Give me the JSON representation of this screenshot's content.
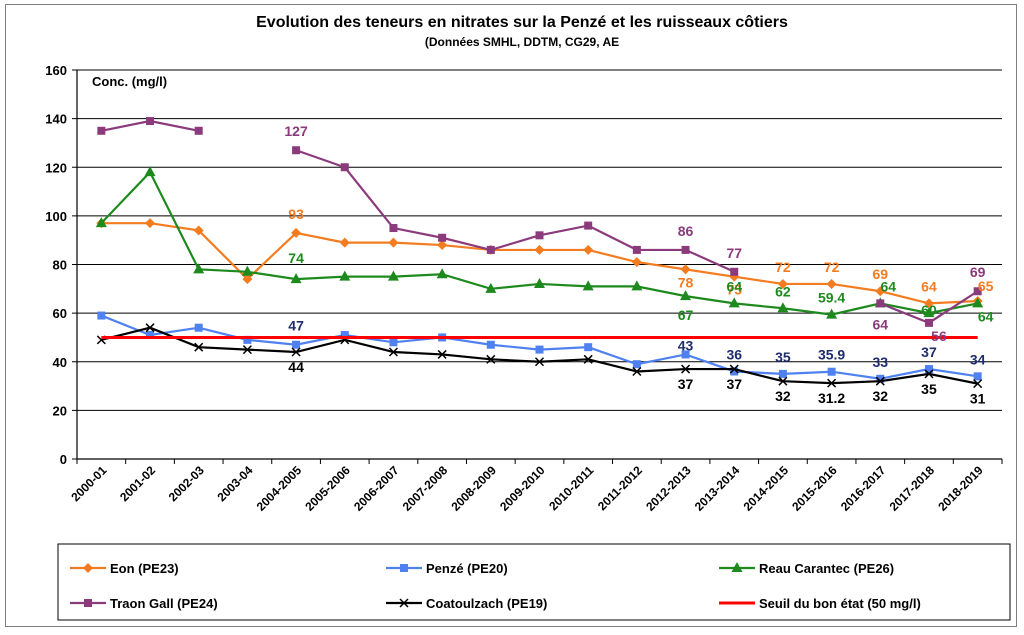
{
  "chart_data": {
    "type": "line",
    "title": "Evolution des teneurs en nitrates sur la Penzé et les ruisseaux côtiers",
    "subtitle": "(Données SMHL, DDTM, CG29, AE",
    "ylabel": "Conc. (mg/l)",
    "xlabel": "",
    "ylim": [
      0,
      160
    ],
    "yticks": [
      0,
      20,
      40,
      60,
      80,
      100,
      120,
      140,
      160
    ],
    "grid": true,
    "legend_position": "bottom",
    "categories": [
      "2000-01",
      "2001-02",
      "2002-03",
      "2003-04",
      "2004-2005",
      "2005-2006",
      "2006-2007",
      "2007-2008",
      "2008-2009",
      "2009-2010",
      "2010-2011",
      "2011-2012",
      "2012-2013",
      "2013-2014",
      "2014-2015",
      "2015-2016",
      "2016-2017",
      "2017-2018",
      "2018-2019"
    ],
    "series": [
      {
        "name": "Eon (PE23)",
        "color": "#f47c20",
        "marker": "diamond",
        "values": [
          97,
          97,
          94,
          74,
          93,
          89,
          89,
          88,
          86,
          86,
          86,
          81,
          78,
          75,
          72,
          72,
          69,
          64,
          65
        ]
      },
      {
        "name": "Penzé (PE20)",
        "color": "#4f81f0",
        "marker": "square",
        "values": [
          59,
          51,
          54,
          49,
          47,
          51,
          48,
          50,
          47,
          45,
          46,
          39,
          43,
          36,
          35,
          35.9,
          33,
          37,
          34
        ]
      },
      {
        "name": "Reau Carantec (PE26)",
        "color": "#1e8a1e",
        "marker": "triangle",
        "values": [
          97,
          118,
          78,
          77,
          74,
          75,
          75,
          76,
          70,
          72,
          71,
          71,
          67,
          64,
          62,
          59.4,
          64,
          60,
          64
        ]
      },
      {
        "name": "Traon Gall (PE24)",
        "color": "#8b3a7c",
        "marker": "square",
        "values": [
          135,
          139,
          135,
          null,
          127,
          120,
          95,
          91,
          86,
          92,
          96,
          86,
          86,
          77,
          null,
          null,
          64,
          56,
          69
        ]
      },
      {
        "name": "Coatoulzach (PE19)",
        "color": "#000000",
        "marker": "x",
        "values": [
          49,
          54,
          46,
          45,
          44,
          49,
          44,
          43,
          41,
          40,
          41,
          36,
          37,
          37,
          32,
          31.2,
          32,
          35,
          31
        ]
      },
      {
        "name": "Seuil du bon état (50 mg/l)",
        "color": "#ff0000",
        "marker": "none",
        "threshold": 50
      }
    ],
    "data_labels": [
      {
        "series": 0,
        "index": 4,
        "text": "93"
      },
      {
        "series": 0,
        "index": 12,
        "text": "78"
      },
      {
        "series": 0,
        "index": 13,
        "text": "75"
      },
      {
        "series": 0,
        "index": 14,
        "text": "72"
      },
      {
        "series": 0,
        "index": 15,
        "text": "72"
      },
      {
        "series": 0,
        "index": 16,
        "text": "69"
      },
      {
        "series": 0,
        "index": 17,
        "text": "64"
      },
      {
        "series": 0,
        "index": 18,
        "text": "65"
      },
      {
        "series": 1,
        "index": 4,
        "text": "47"
      },
      {
        "series": 1,
        "index": 12,
        "text": "43"
      },
      {
        "series": 1,
        "index": 13,
        "text": "36"
      },
      {
        "series": 1,
        "index": 14,
        "text": "35"
      },
      {
        "series": 1,
        "index": 15,
        "text": "35.9"
      },
      {
        "series": 1,
        "index": 16,
        "text": "33"
      },
      {
        "series": 1,
        "index": 17,
        "text": "37"
      },
      {
        "series": 1,
        "index": 18,
        "text": "34"
      },
      {
        "series": 2,
        "index": 4,
        "text": "74"
      },
      {
        "series": 2,
        "index": 12,
        "text": "67"
      },
      {
        "series": 2,
        "index": 13,
        "text": "64"
      },
      {
        "series": 2,
        "index": 14,
        "text": "62"
      },
      {
        "series": 2,
        "index": 15,
        "text": "59.4"
      },
      {
        "series": 2,
        "index": 16,
        "text": "64"
      },
      {
        "series": 2,
        "index": 17,
        "text": "60"
      },
      {
        "series": 2,
        "index": 18,
        "text": "64"
      },
      {
        "series": 3,
        "index": 4,
        "text": "127"
      },
      {
        "series": 3,
        "index": 12,
        "text": "86"
      },
      {
        "series": 3,
        "index": 13,
        "text": "77"
      },
      {
        "series": 3,
        "index": 16,
        "text": "64"
      },
      {
        "series": 3,
        "index": 17,
        "text": "56"
      },
      {
        "series": 3,
        "index": 18,
        "text": "69"
      },
      {
        "series": 4,
        "index": 4,
        "text": "44"
      },
      {
        "series": 4,
        "index": 12,
        "text": "37"
      },
      {
        "series": 4,
        "index": 13,
        "text": "37"
      },
      {
        "series": 4,
        "index": 14,
        "text": "32"
      },
      {
        "series": 4,
        "index": 15,
        "text": "31.2"
      },
      {
        "series": 4,
        "index": 16,
        "text": "32"
      },
      {
        "series": 4,
        "index": 17,
        "text": "35"
      },
      {
        "series": 4,
        "index": 18,
        "text": "31"
      }
    ]
  }
}
